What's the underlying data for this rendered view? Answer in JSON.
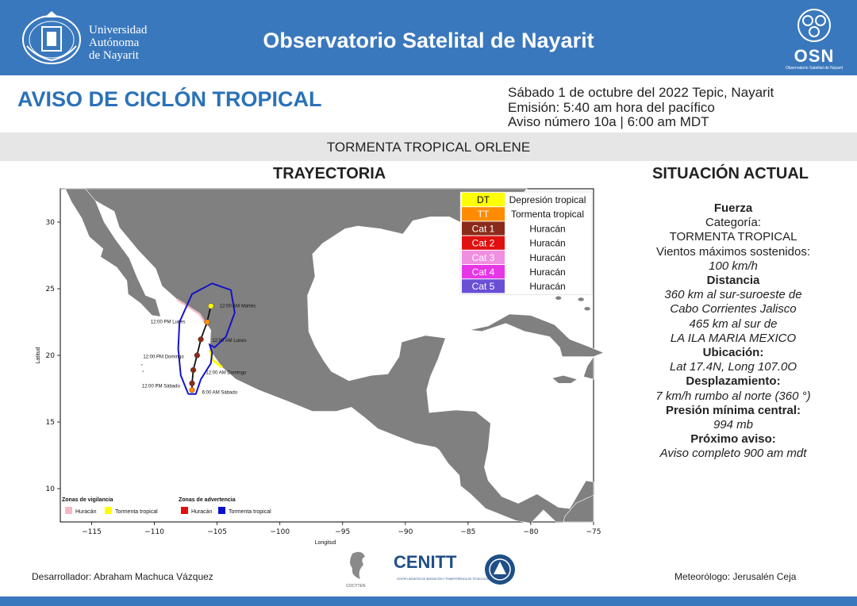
{
  "header": {
    "university": [
      "Universidad",
      "Autónoma",
      "de Nayarit"
    ],
    "title": "Observatorio Satelital de Nayarit",
    "osn_logo_text": "OSN",
    "osn_logo_subtext": "Observatorio Satelital de Nayarit"
  },
  "bulletin": {
    "title": "AVISO DE CICLÓN TROPICAL",
    "date_line": "Sábado 1 de octubre del 2022 Tepic, Nayarit",
    "emission_line": "Emisión: 5:40 am hora del pacífico",
    "number_line": "Aviso número 10a | 6:00 am MDT",
    "storm_name": "TORMENTA TROPICAL ORLENE"
  },
  "sections": {
    "track_title": "TRAYECTORIA",
    "status_title": "SITUACIÓN ACTUAL"
  },
  "status": [
    {
      "text": "Fuerza",
      "style": "b"
    },
    {
      "text": "Categoría:",
      "style": ""
    },
    {
      "text": "TORMENTA TROPICAL",
      "style": ""
    },
    {
      "text": "Vientos máximos sostenidos:",
      "style": ""
    },
    {
      "text": "100 km/h",
      "style": "i"
    },
    {
      "text": "Distancia",
      "style": "b"
    },
    {
      "text": "360 km al sur-suroeste de",
      "style": "i"
    },
    {
      "text": "Cabo Corrientes Jalisco",
      "style": "i"
    },
    {
      "text": "465 km al sur de",
      "style": "i"
    },
    {
      "text": "LA ILA MARIA MEXICO",
      "style": "i"
    },
    {
      "text": "Ubicación:",
      "style": "b"
    },
    {
      "text": "Lat 17.4N, Long 107.0O",
      "style": "i"
    },
    {
      "text": "Desplazamiento:",
      "style": "b"
    },
    {
      "text": "7 km/h rumbo al norte (360 °)",
      "style": "i"
    },
    {
      "text": "Presión mínima central:",
      "style": "b"
    },
    {
      "text": "994 mb",
      "style": "i"
    },
    {
      "text": "Próximo aviso:",
      "style": "b"
    },
    {
      "text": "Aviso completo 900  am mdt",
      "style": "i"
    }
  ],
  "map": {
    "xlabel": "Longitud",
    "ylabel": "Latitud",
    "xticks": [
      -115,
      -110,
      -105,
      -100,
      -95,
      -90,
      -85,
      -80,
      -75
    ],
    "xtick_labels": [
      "−115",
      "−110",
      "−105",
      "−100",
      "−95",
      "−90",
      "−85",
      "−80",
      "−75"
    ],
    "yticks": [
      10,
      15,
      20,
      25,
      30
    ],
    "xlim": [
      -117.5,
      -75
    ],
    "ylim": [
      7.5,
      32.5
    ],
    "legend": [
      {
        "code": "DT",
        "label": "Depresión tropical",
        "color": "#ffff00",
        "code_color": "#000000"
      },
      {
        "code": "TT",
        "label": "Tormenta tropical",
        "color": "#ff8c00",
        "code_color": "#ffffff"
      },
      {
        "code": "Cat 1",
        "label": "Huracán",
        "color": "#8b2a1a",
        "code_color": "#ffffff"
      },
      {
        "code": "Cat 2",
        "label": "Huracán",
        "color": "#e01010",
        "code_color": "#ffffff"
      },
      {
        "code": "Cat 3",
        "label": "Huracán",
        "color": "#f08fe0",
        "code_color": "#ffffff"
      },
      {
        "code": "Cat 4",
        "label": "Huracán",
        "color": "#e636e6",
        "code_color": "#ffffff"
      },
      {
        "code": "Cat 5",
        "label": "Huracán",
        "color": "#6a4fd6",
        "code_color": "#ffffff"
      }
    ],
    "track": [
      {
        "lon": -107.0,
        "lat": 17.4,
        "color": "#ff8c00"
      },
      {
        "lon": -107.0,
        "lat": 17.9,
        "color": "#8b2a1a"
      },
      {
        "lon": -106.9,
        "lat": 18.9,
        "color": "#8b2a1a"
      },
      {
        "lon": -106.6,
        "lat": 20.0,
        "color": "#8b2a1a"
      },
      {
        "lon": -106.3,
        "lat": 21.2,
        "color": "#8b2a1a"
      },
      {
        "lon": -105.8,
        "lat": 22.5,
        "color": "#ff8c00"
      },
      {
        "lon": -105.5,
        "lat": 23.7,
        "color": "#ffff00"
      }
    ],
    "track_labels": [
      {
        "text": "12:00 AM Martes",
        "lon": -104.8,
        "lat": 23.6
      },
      {
        "text": "12:00 PM Lunes",
        "lon": -110.3,
        "lat": 22.4
      },
      {
        "text": "12:00 AM Lunes",
        "lon": -105.4,
        "lat": 21.0
      },
      {
        "text": "12:00 PM Domingo",
        "lon": -110.9,
        "lat": 19.8
      },
      {
        "text": "12:00 AM Domingo",
        "lon": -105.9,
        "lat": 18.6
      },
      {
        "text": "12:00 PM Sábado",
        "lon": -111.0,
        "lat": 17.6
      },
      {
        "text": "6:00 AM Sábado",
        "lon": -106.2,
        "lat": 17.1
      }
    ],
    "zones": {
      "watch_title": "Zonas de vigilancia",
      "warning_title": "Zonas de advertencia",
      "watch_items": [
        {
          "label": "Huracán",
          "color": "#f4b8c4"
        },
        {
          "label": "Tormenta tropical",
          "color": "#ffff00"
        }
      ],
      "warning_items": [
        {
          "label": "Huracán",
          "color": "#e01010"
        },
        {
          "label": "Tormenta tropical",
          "color": "#0a10d0"
        }
      ]
    }
  },
  "footer": {
    "developer": "Desarrollador: Abraham Machuca Vázquez",
    "meteorologist": "Meteorólogo: Jerusalén Ceja",
    "cenitt": "CENITT",
    "cenitt_sub": "CENTRO NAYARITA DE INNOVACIÓN Y TRANSFERENCIA DE TECNOLOGÍA A.C.",
    "cocyten": "COCYTEN"
  }
}
